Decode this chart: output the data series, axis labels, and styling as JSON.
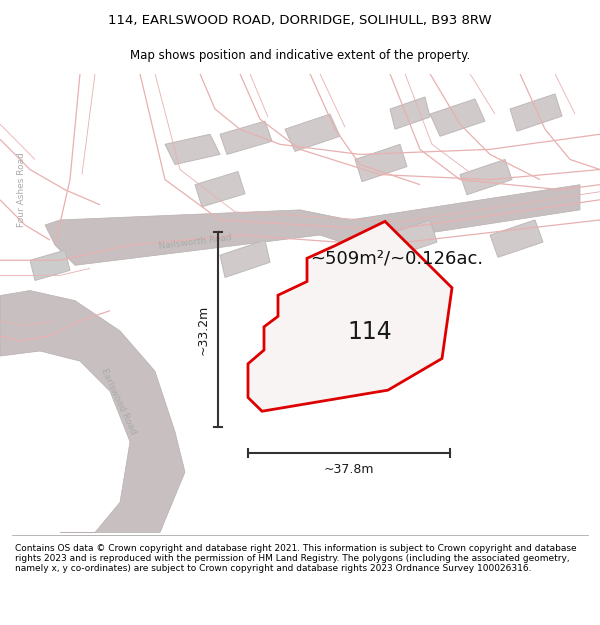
{
  "title_line1": "114, EARLSWOOD ROAD, DORRIDGE, SOLIHULL, B93 8RW",
  "title_line2": "Map shows position and indicative extent of the property.",
  "footer_text": "Contains OS data © Crown copyright and database right 2021. This information is subject to Crown copyright and database rights 2023 and is reproduced with the permission of HM Land Registry. The polygons (including the associated geometry, namely x, y co-ordinates) are subject to Crown copyright and database rights 2023 Ordnance Survey 100026316.",
  "area_label": "~509m²/~0.126ac.",
  "width_label": "~37.8m",
  "height_label": "~33.2m",
  "property_number": "114",
  "map_bg": "#f5f0f0",
  "block_fill": "#d0caca",
  "block_edge": "#c0b8b8",
  "red_color": "#dd0000",
  "road_gray": "#c8c0c0",
  "road_text": "#aaaaaa",
  "road_line": "#e8b0b0",
  "meas_color": "#333333",
  "prop_fill": "#f8f4f4",
  "title_fontsize": 9.5,
  "subtitle_fontsize": 8.5,
  "footer_fontsize": 6.5
}
